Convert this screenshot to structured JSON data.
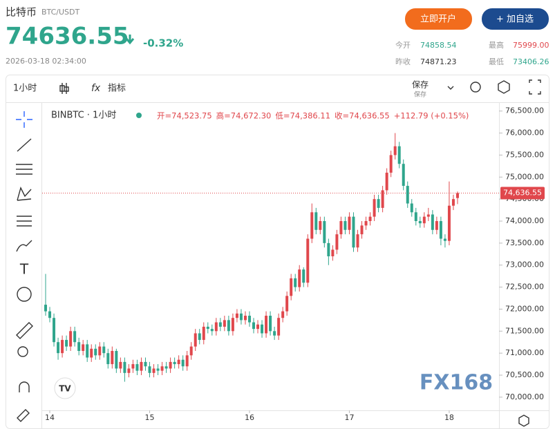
{
  "header": {
    "title": "比特币",
    "pair": "BTC/USDT",
    "price": "74636.55",
    "change": "-0.32%",
    "datetime": "2026-03-18 02:34:00",
    "buttons": [
      "立即开户",
      "+ 加自选"
    ],
    "stats": [
      {
        "label": "今开",
        "value": "74858.54"
      },
      {
        "label": "最高",
        "value": "75999.00"
      },
      {
        "label": "昨收",
        "value": "74871.23"
      },
      {
        "label": "最低",
        "value": "73406.26"
      }
    ]
  },
  "toolbar": {
    "interval": "1小时",
    "indicators": "指标",
    "save": "保存",
    "save_sub": "保存"
  },
  "chart_data": {
    "type": "candlestick",
    "symbol": "BINBTC · 1小时",
    "ohlc_labels": [
      "开=74,523.75",
      "高=74,672.30",
      "低=74,386.11",
      "收=74,636.55",
      "+112.79 (+0.15%)"
    ],
    "watermark": "FX168",
    "up_color": "#e0474c",
    "down_color": "#2fa58c",
    "open": [
      72100,
      71950,
      71800,
      71250,
      71000,
      71300,
      71150,
      71500,
      71250,
      71050,
      71200,
      70900,
      71100,
      70950,
      71150,
      71000,
      70750,
      71050,
      70650,
      70800,
      70550,
      70650,
      70750,
      70600,
      70800,
      70700,
      70550,
      70650,
      70600,
      70700,
      70650,
      70800,
      70750,
      70850,
      70700,
      70950,
      71150,
      71450,
      71300,
      71600,
      71550,
      71500,
      71700,
      71600,
      71750,
      71500,
      71800,
      71900,
      71750,
      71850,
      71700,
      71550,
      71650,
      71450,
      71850,
      71500,
      71400,
      71800,
      71950,
      72300,
      72700,
      72500,
      72900,
      72600,
      73600,
      74200,
      73800,
      74000,
      73500,
      73200,
      73350,
      73700,
      74000,
      73800,
      74100,
      73400,
      73700,
      73900,
      74000,
      74100,
      74500,
      74300,
      74700,
      75100,
      75500,
      75700,
      75300,
      74800,
      74400,
      74200,
      74000,
      73950,
      74100,
      74150,
      73800,
      74000,
      73600,
      73550,
      74350,
      74523.75
    ],
    "high": [
      72800,
      72050,
      71900,
      71350,
      71400,
      71400,
      71600,
      71600,
      71350,
      71300,
      71300,
      71200,
      71200,
      71250,
      71250,
      71100,
      71150,
      71100,
      70900,
      70900,
      70750,
      70850,
      70850,
      70900,
      70900,
      70800,
      70750,
      70750,
      70800,
      70800,
      70900,
      70900,
      70950,
      70950,
      71050,
      71250,
      71550,
      71550,
      71700,
      71700,
      71650,
      71800,
      71800,
      71850,
      71850,
      71900,
      72000,
      72000,
      71950,
      71950,
      71800,
      71750,
      71750,
      71950,
      71950,
      71600,
      71900,
      72050,
      72400,
      72800,
      72800,
      73000,
      72950,
      73700,
      74400,
      74300,
      74100,
      74100,
      73600,
      73450,
      73800,
      74100,
      74100,
      74200,
      74200,
      73800,
      74000,
      74100,
      74200,
      74600,
      74600,
      74800,
      75200,
      75600,
      76000,
      75800,
      75400,
      74900,
      74500,
      74300,
      74100,
      74200,
      74300,
      74250,
      74100,
      74100,
      73700,
      74900,
      74600,
      74672.3
    ],
    "low": [
      71850,
      71700,
      71150,
      70850,
      70900,
      71050,
      71050,
      71150,
      70950,
      70950,
      70800,
      70800,
      70850,
      70850,
      70900,
      70650,
      70650,
      70550,
      70550,
      70350,
      70450,
      70550,
      70500,
      70500,
      70600,
      70450,
      70450,
      70500,
      70500,
      70550,
      70550,
      70650,
      70650,
      70600,
      70600,
      70850,
      71050,
      71200,
      71200,
      71450,
      71400,
      71400,
      71500,
      71500,
      71400,
      71400,
      71700,
      71650,
      71650,
      71600,
      71450,
      71450,
      71350,
      71350,
      71400,
      71300,
      71300,
      71700,
      71850,
      72200,
      72400,
      72400,
      72500,
      72500,
      73500,
      73700,
      73700,
      73400,
      73000,
      73100,
      73250,
      73600,
      73700,
      73700,
      73300,
      73300,
      73600,
      73800,
      73900,
      74000,
      74200,
      74200,
      74600,
      75000,
      75400,
      75200,
      74700,
      74300,
      74100,
      73900,
      73850,
      73850,
      74000,
      73700,
      73700,
      73450,
      73400,
      73450,
      74250,
      74386.11
    ],
    "close": [
      71950,
      71800,
      71250,
      71000,
      71300,
      71150,
      71500,
      71250,
      71050,
      71200,
      70900,
      71100,
      70950,
      71150,
      71000,
      70750,
      71050,
      70650,
      70800,
      70550,
      70650,
      70750,
      70600,
      70800,
      70700,
      70550,
      70650,
      70600,
      70700,
      70650,
      70800,
      70750,
      70850,
      70700,
      70950,
      71150,
      71450,
      71300,
      71600,
      71550,
      71500,
      71700,
      71600,
      71750,
      71500,
      71800,
      71900,
      71750,
      71850,
      71700,
      71550,
      71650,
      71450,
      71850,
      71500,
      71400,
      71800,
      71950,
      72300,
      72700,
      72500,
      72900,
      72600,
      73600,
      74200,
      73800,
      74000,
      73500,
      73200,
      73350,
      73700,
      74000,
      73800,
      74100,
      73400,
      73700,
      73900,
      74000,
      74100,
      74500,
      74300,
      74700,
      75100,
      75500,
      75700,
      75300,
      74800,
      74400,
      74200,
      74000,
      73950,
      74100,
      74150,
      73800,
      74000,
      73600,
      73550,
      74350,
      74500,
      74636.55
    ],
    "last_price": {
      "value": 74636.55,
      "label": "74,636.55"
    },
    "ylim": [
      69700,
      76700
    ],
    "yticks": [
      {
        "value": 70000,
        "label": "70,000.00"
      },
      {
        "value": 70500,
        "label": "70,500.00"
      },
      {
        "value": 71000,
        "label": "71,000.00"
      },
      {
        "value": 71500,
        "label": "71,500.00"
      },
      {
        "value": 72000,
        "label": "72,000.00"
      },
      {
        "value": 72500,
        "label": "72,500.00"
      },
      {
        "value": 73000,
        "label": "73,000.00"
      },
      {
        "value": 73500,
        "label": "73,500.00"
      },
      {
        "value": 74000,
        "label": "74,000.00"
      },
      {
        "value": 74500,
        "label": "74,500.00"
      },
      {
        "value": 75000,
        "label": "75,000.00"
      },
      {
        "value": 75500,
        "label": "75,500.00"
      },
      {
        "value": 76000,
        "label": "76,000.00"
      },
      {
        "value": 76500,
        "label": "76,500.00"
      }
    ],
    "xticks": [
      {
        "value": 1,
        "label": "14"
      },
      {
        "value": 25,
        "label": "15"
      },
      {
        "value": 49,
        "label": "16"
      },
      {
        "value": 73,
        "label": "17"
      },
      {
        "value": 97,
        "label": "18"
      }
    ]
  }
}
